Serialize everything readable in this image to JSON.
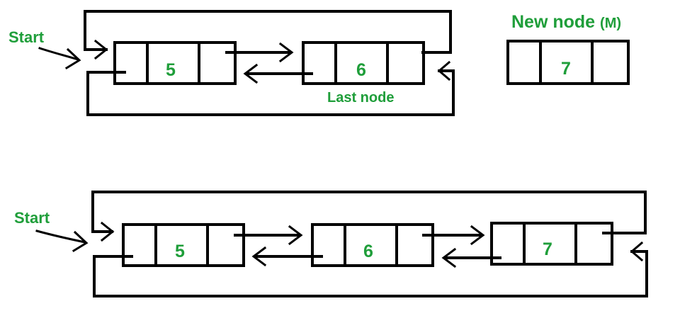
{
  "colors": {
    "text": "#1f9e3a",
    "stroke": "#000000"
  },
  "top_diagram": {
    "start_label": "Start",
    "nodes": [
      {
        "value": "5"
      },
      {
        "value": "6"
      }
    ],
    "last_node_label": "Last node"
  },
  "new_node": {
    "title": "New node",
    "title_suffix": "(M)",
    "value": "7"
  },
  "bottom_diagram": {
    "start_label": "Start",
    "nodes": [
      {
        "value": "5"
      },
      {
        "value": "6"
      },
      {
        "value": "7"
      }
    ]
  }
}
